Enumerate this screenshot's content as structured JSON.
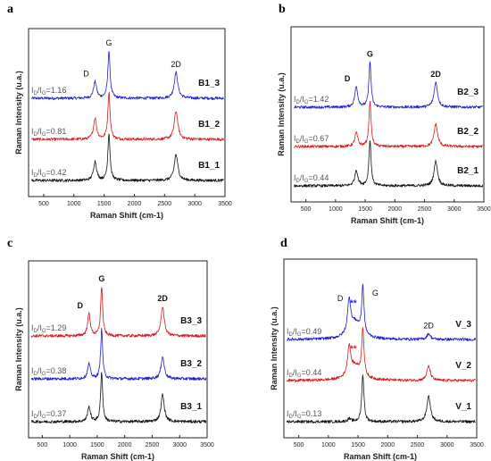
{
  "chart_data": [
    {
      "panel": "a",
      "type": "line",
      "xlabel": "Raman Shift (cm-1)",
      "ylabel": "Raman Intensity (u.a.)",
      "xlim": [
        250,
        3500
      ],
      "xticks": [
        500,
        1000,
        1500,
        2000,
        2500,
        3000,
        3500
      ],
      "peak_labels": [
        "D",
        "G",
        "2D"
      ],
      "series": [
        {
          "name": "B1_3",
          "color": "#1c1cd0",
          "ratio_prefix": "I",
          "ratio_sub_d": "D",
          "ratio_sub_g": "G",
          "ratio_value": "=1.16",
          "D_height": 0.35,
          "G_height": 1.0,
          "2D_height": 0.55
        },
        {
          "name": "B1_2",
          "color": "#d41c1c",
          "ratio_prefix": "I",
          "ratio_sub_d": "D",
          "ratio_sub_g": "G",
          "ratio_value": "=0.81",
          "D_height": 0.45,
          "G_height": 1.0,
          "2D_height": 0.6
        },
        {
          "name": "B1_1",
          "color": "#111111",
          "ratio_prefix": "I",
          "ratio_sub_d": "D",
          "ratio_sub_g": "G",
          "ratio_value": "=0.42",
          "D_height": 0.4,
          "G_height": 1.0,
          "2D_height": 0.55
        }
      ]
    },
    {
      "panel": "b",
      "type": "line",
      "xlabel": "Raman Shift (cm-1)",
      "ylabel": "Raman Intensity (u.a.)",
      "xlim": [
        250,
        3500
      ],
      "xticks": [
        500,
        1000,
        1500,
        2000,
        2500,
        3000,
        3500
      ],
      "peak_labels": [
        "D",
        "G",
        "2D"
      ],
      "series": [
        {
          "name": "B2_3",
          "color": "#1c1cd0",
          "ratio_prefix": "I",
          "ratio_sub_d": "D",
          "ratio_sub_g": "G",
          "ratio_value": "=1.42",
          "D_height": 0.45,
          "G_height": 1.0,
          "2D_height": 0.55
        },
        {
          "name": "B2_2",
          "color": "#d41c1c",
          "ratio_prefix": "I",
          "ratio_sub_d": "D",
          "ratio_sub_g": "G",
          "ratio_value": "=0.67",
          "D_height": 0.3,
          "G_height": 1.0,
          "2D_height": 0.5
        },
        {
          "name": "B2_1",
          "color": "#111111",
          "ratio_prefix": "I",
          "ratio_sub_d": "D",
          "ratio_sub_g": "G",
          "ratio_value": "=0.44",
          "D_height": 0.35,
          "G_height": 1.0,
          "2D_height": 0.55
        }
      ]
    },
    {
      "panel": "c",
      "type": "line",
      "xlabel": "Raman Shift (cm-1)",
      "ylabel": "Raman Intensity (u.a.)",
      "xlim": [
        250,
        3500
      ],
      "xticks": [
        500,
        1000,
        1500,
        2000,
        2500,
        3000,
        3500
      ],
      "peak_labels": [
        "D",
        "G",
        "2D"
      ],
      "series": [
        {
          "name": "B3_3",
          "color": "#d41c1c",
          "ratio_prefix": "I",
          "ratio_sub_d": "D",
          "ratio_sub_g": "G",
          "ratio_value": "=1.29",
          "D_height": 0.45,
          "G_height": 1.0,
          "2D_height": 0.6
        },
        {
          "name": "B3_2",
          "color": "#1c1cd0",
          "ratio_prefix": "I",
          "ratio_sub_d": "D",
          "ratio_sub_g": "G",
          "ratio_value": "=0.38",
          "D_height": 0.3,
          "G_height": 1.0,
          "2D_height": 0.45
        },
        {
          "name": "B3_1",
          "color": "#111111",
          "ratio_prefix": "I",
          "ratio_sub_d": "D",
          "ratio_sub_g": "G",
          "ratio_value": "=0.37",
          "D_height": 0.3,
          "G_height": 1.0,
          "2D_height": 0.55
        }
      ]
    },
    {
      "panel": "d",
      "type": "line",
      "xlabel": "Raman Shift (cm-1)",
      "ylabel": "Raman Intensity (u.a.)",
      "xlim": [
        250,
        3500
      ],
      "xticks": [
        500,
        1000,
        1500,
        2000,
        2500,
        3000,
        3500
      ],
      "peak_labels": [
        "D",
        "G",
        "2D"
      ],
      "star_marker": "**",
      "series": [
        {
          "name": "V_3",
          "color": "#1c1cd0",
          "ratio_prefix": "I",
          "ratio_sub_d": "D",
          "ratio_sub_g": "G",
          "ratio_value": "=0.49",
          "D_height": 0.7,
          "G_height": 1.0,
          "2D_height": 0.12
        },
        {
          "name": "V_2",
          "color": "#d41c1c",
          "ratio_prefix": "I",
          "ratio_sub_d": "D",
          "ratio_sub_g": "G",
          "ratio_value": "=0.44",
          "D_height": 0.6,
          "G_height": 1.0,
          "2D_height": 0.3
        },
        {
          "name": "V_1",
          "color": "#111111",
          "ratio_prefix": "I",
          "ratio_sub_d": "D",
          "ratio_sub_g": "G",
          "ratio_value": "=0.13",
          "D_height": 0.06,
          "G_height": 1.0,
          "2D_height": 0.55
        }
      ]
    }
  ]
}
